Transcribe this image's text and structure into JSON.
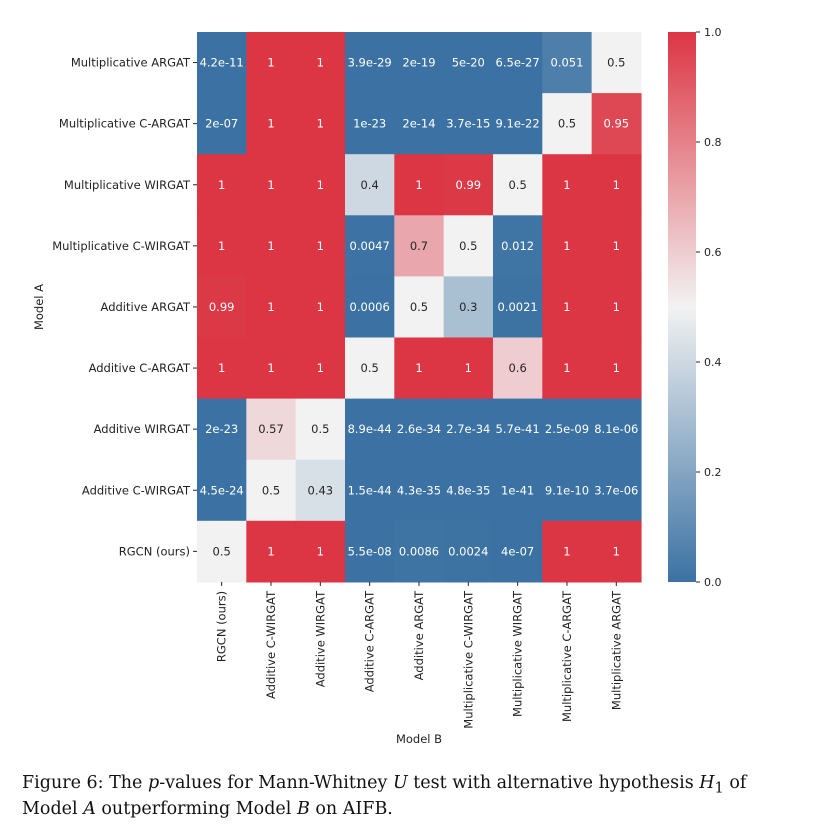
{
  "chart_data": {
    "type": "heatmap",
    "title": "",
    "xlabel": "Model B",
    "ylabel": "Model A",
    "rows": [
      "Multiplicative ARGAT",
      "Multiplicative C-ARGAT",
      "Multiplicative WIRGAT",
      "Multiplicative C-WIRGAT",
      "Additive ARGAT",
      "Additive C-ARGAT",
      "Additive WIRGAT",
      "Additive C-WIRGAT",
      "RGCN (ours)"
    ],
    "columns": [
      "RGCN (ours)",
      "Additive C-WIRGAT",
      "Additive WIRGAT",
      "Additive C-ARGAT",
      "Additive ARGAT",
      "Multiplicative C-WIRGAT",
      "Multiplicative WIRGAT",
      "Multiplicative C-ARGAT",
      "Multiplicative ARGAT"
    ],
    "values": [
      [
        4.2e-11,
        1,
        1,
        3.9e-29,
        2e-19,
        5e-20,
        6.5e-27,
        0.051,
        0.5
      ],
      [
        2e-07,
        1,
        1,
        1e-23,
        2e-14,
        3.7e-15,
        9.1e-22,
        0.5,
        0.95
      ],
      [
        1,
        1,
        1,
        0.4,
        1,
        0.99,
        0.5,
        1,
        1
      ],
      [
        1,
        1,
        1,
        0.0047,
        0.7,
        0.5,
        0.012,
        1,
        1
      ],
      [
        0.99,
        1,
        1,
        0.0006,
        0.5,
        0.3,
        0.0021,
        1,
        1
      ],
      [
        1,
        1,
        1,
        0.5,
        1,
        1,
        0.6,
        1,
        1
      ],
      [
        2e-23,
        0.57,
        0.5,
        8.9e-44,
        2.6e-34,
        2.7e-34,
        5.7e-41,
        2.5e-09,
        8.1e-06
      ],
      [
        4.5e-24,
        0.5,
        0.43,
        1.5e-44,
        4.3e-35,
        4.8e-35,
        1e-41,
        9.1e-10,
        3.7e-06
      ],
      [
        0.5,
        1,
        1,
        5.5e-08,
        0.0086,
        0.0024,
        4e-07,
        1,
        1
      ]
    ],
    "labels": [
      [
        "4.2e-11",
        "1",
        "1",
        "3.9e-29",
        "2e-19",
        "5e-20",
        "6.5e-27",
        "0.051",
        "0.5"
      ],
      [
        "2e-07",
        "1",
        "1",
        "1e-23",
        "2e-14",
        "3.7e-15",
        "9.1e-22",
        "0.5",
        "0.95"
      ],
      [
        "1",
        "1",
        "1",
        "0.4",
        "1",
        "0.99",
        "0.5",
        "1",
        "1"
      ],
      [
        "1",
        "1",
        "1",
        "0.0047",
        "0.7",
        "0.5",
        "0.012",
        "1",
        "1"
      ],
      [
        "0.99",
        "1",
        "1",
        "0.0006",
        "0.5",
        "0.3",
        "0.0021",
        "1",
        "1"
      ],
      [
        "1",
        "1",
        "1",
        "0.5",
        "1",
        "1",
        "0.6",
        "1",
        "1"
      ],
      [
        "2e-23",
        "0.57",
        "0.5",
        "8.9e-44",
        "2.6e-34",
        "2.7e-34",
        "5.7e-41",
        "2.5e-09",
        "8.1e-06"
      ],
      [
        "4.5e-24",
        "0.5",
        "0.43",
        "1.5e-44",
        "4.3e-35",
        "4.8e-35",
        "1e-41",
        "9.1e-10",
        "3.7e-06"
      ],
      [
        "0.5",
        "1",
        "1",
        "5.5e-08",
        "0.0086",
        "0.0024",
        "4e-07",
        "1",
        "1"
      ]
    ],
    "colorbar": {
      "range": [
        0.0,
        1.0
      ],
      "ticks": [
        0.0,
        0.2,
        0.4,
        0.6,
        0.8,
        1.0
      ],
      "tick_labels": [
        "0.0",
        "0.2",
        "0.4",
        "0.6",
        "0.8",
        "1.0"
      ],
      "colormap": "diverging blue-white-red",
      "low_color": "#3b72a3",
      "mid_color": "#f2f2f2",
      "high_color": "#dc3543"
    }
  },
  "caption": {
    "label": "Figure 6:",
    "text_before_p": "The ",
    "p_symbol": "p",
    "text_after_p": "-values for Mann-Whitney ",
    "u_symbol": "U",
    "text_after_u": " test with alternative hypothesis ",
    "h_symbol": "H",
    "h_sub": "1",
    "text_after_h": " of Model ",
    "model_a": "A",
    "text_outperform": " outperforming Model ",
    "model_b": "B",
    "text_end": " on AIFB."
  }
}
